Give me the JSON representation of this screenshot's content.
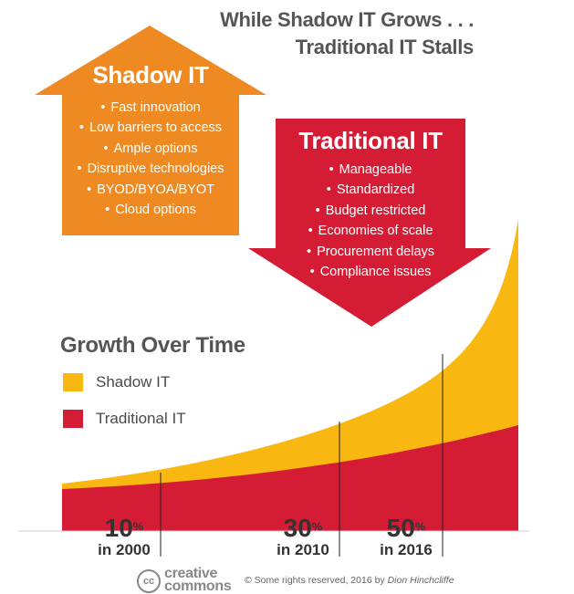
{
  "title": {
    "line1": "While Shadow IT Grows . . .",
    "line2": "Traditional IT Stalls"
  },
  "shadow_it": {
    "title": "Shadow IT",
    "color": "#EF8A22",
    "items": [
      "Fast innovation",
      "Low barriers to access",
      "Ample options",
      "Disruptive technologies",
      "BYOD/BYOA/BYOT",
      "Cloud options"
    ]
  },
  "traditional_it": {
    "title": "Traditional IT",
    "color": "#D51C35",
    "items": [
      "Manageable",
      "Standardized",
      "Budget restricted",
      "Economies of scale",
      "Procurement delays",
      "Compliance issues"
    ]
  },
  "growth": {
    "title": "Growth Over Time",
    "legend": [
      {
        "label": "Shadow IT",
        "color": "#F9B712"
      },
      {
        "label": "Traditional IT",
        "color": "#D51C35"
      }
    ]
  },
  "chart_data": {
    "type": "area",
    "title": "Growth Over Time",
    "series": [
      {
        "name": "Shadow IT",
        "color": "#F9B712"
      },
      {
        "name": "Traditional IT",
        "color": "#D51C35"
      }
    ],
    "annotations": [
      {
        "value": "10",
        "unit": "%",
        "label": "in 2000"
      },
      {
        "value": "30",
        "unit": "%",
        "label": "in 2010"
      },
      {
        "value": "50",
        "unit": "%",
        "label": "in 2016"
      }
    ]
  },
  "footer": {
    "cc_mark": "cc",
    "cc_line1": "creative",
    "cc_line2": "commons",
    "rights_mark": "©",
    "rights_text": "Some rights reserved, 2016 by ",
    "author": "Dion Hinchcliffe"
  }
}
